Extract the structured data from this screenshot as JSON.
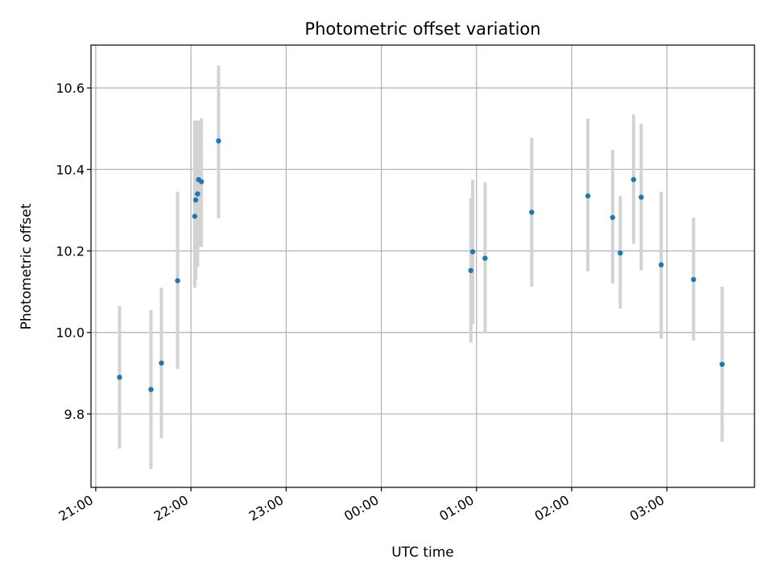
{
  "chart_data": {
    "type": "scatter",
    "title": "Photometric offset variation",
    "xlabel": "UTC time",
    "ylabel": "Photometric offset",
    "grid": true,
    "x_unit": "hours since 21:00 UTC",
    "xlim": [
      -0.05,
      6.92
    ],
    "ylim": [
      9.62,
      10.705
    ],
    "xticks": [
      {
        "value": 0,
        "label": "21:00"
      },
      {
        "value": 1,
        "label": "22:00"
      },
      {
        "value": 2,
        "label": "23:00"
      },
      {
        "value": 3,
        "label": "00:00"
      },
      {
        "value": 4,
        "label": "01:00"
      },
      {
        "value": 5,
        "label": "02:00"
      },
      {
        "value": 6,
        "label": "03:00"
      }
    ],
    "yticks": [
      {
        "value": 9.8,
        "label": "9.8"
      },
      {
        "value": 10.0,
        "label": "10.0"
      },
      {
        "value": 10.2,
        "label": "10.2"
      },
      {
        "value": 10.4,
        "label": "10.4"
      },
      {
        "value": 10.6,
        "label": "10.6"
      }
    ],
    "point_color": "#1f77b4",
    "errorbar_color": "#d3d3d3",
    "points": [
      {
        "x": 0.25,
        "y": 9.89,
        "yerr_low": 9.715,
        "yerr_high": 10.065
      },
      {
        "x": 0.58,
        "y": 9.86,
        "yerr_low": 9.665,
        "yerr_high": 10.055
      },
      {
        "x": 0.69,
        "y": 9.925,
        "yerr_low": 9.74,
        "yerr_high": 10.11
      },
      {
        "x": 0.86,
        "y": 10.127,
        "yerr_low": 9.91,
        "yerr_high": 10.345
      },
      {
        "x": 1.04,
        "y": 10.285,
        "yerr_low": 10.11,
        "yerr_high": 10.52
      },
      {
        "x": 1.05,
        "y": 10.325,
        "yerr_low": 10.13,
        "yerr_high": 10.52
      },
      {
        "x": 1.07,
        "y": 10.34,
        "yerr_low": 10.16,
        "yerr_high": 10.515
      },
      {
        "x": 1.08,
        "y": 10.375,
        "yerr_low": 10.21,
        "yerr_high": 10.52
      },
      {
        "x": 1.11,
        "y": 10.37,
        "yerr_low": 10.21,
        "yerr_high": 10.525
      },
      {
        "x": 1.29,
        "y": 10.47,
        "yerr_low": 10.28,
        "yerr_high": 10.655
      },
      {
        "x": 3.94,
        "y": 10.152,
        "yerr_low": 9.975,
        "yerr_high": 10.33
      },
      {
        "x": 3.96,
        "y": 10.198,
        "yerr_low": 10.02,
        "yerr_high": 10.375
      },
      {
        "x": 4.09,
        "y": 10.182,
        "yerr_low": 10.0,
        "yerr_high": 10.368
      },
      {
        "x": 4.58,
        "y": 10.295,
        "yerr_low": 10.112,
        "yerr_high": 10.478
      },
      {
        "x": 5.17,
        "y": 10.335,
        "yerr_low": 10.15,
        "yerr_high": 10.525
      },
      {
        "x": 5.43,
        "y": 10.282,
        "yerr_low": 10.12,
        "yerr_high": 10.448
      },
      {
        "x": 5.51,
        "y": 10.195,
        "yerr_low": 10.058,
        "yerr_high": 10.335
      },
      {
        "x": 5.65,
        "y": 10.375,
        "yerr_low": 10.218,
        "yerr_high": 10.535
      },
      {
        "x": 5.73,
        "y": 10.332,
        "yerr_low": 10.152,
        "yerr_high": 10.512
      },
      {
        "x": 5.94,
        "y": 10.166,
        "yerr_low": 9.985,
        "yerr_high": 10.345
      },
      {
        "x": 6.28,
        "y": 10.13,
        "yerr_low": 9.98,
        "yerr_high": 10.282
      },
      {
        "x": 6.58,
        "y": 9.922,
        "yerr_low": 9.732,
        "yerr_high": 10.112
      }
    ]
  }
}
